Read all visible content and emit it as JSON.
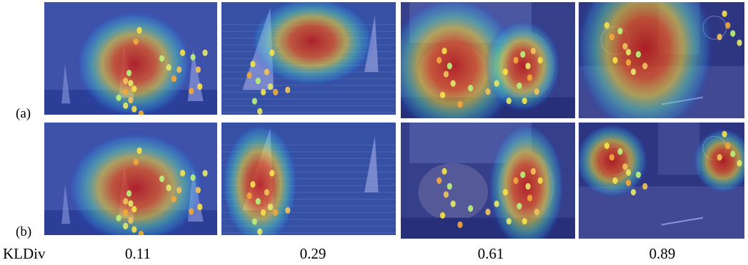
{
  "rows": [
    {
      "label": "(a)"
    },
    {
      "label": "(b)"
    }
  ],
  "metric": {
    "name": "KLDiv",
    "values": [
      "0.11",
      "0.29",
      "0.61",
      "0.89"
    ]
  },
  "panels": [
    {
      "id": "a1",
      "scene": "sailboats",
      "heat": [
        [
          0.52,
          0.55,
          0.34,
          0.48
        ]
      ],
      "fix": [
        [
          0.55,
          0.25
        ],
        [
          0.53,
          0.35
        ],
        [
          0.49,
          0.63
        ],
        [
          0.47,
          0.7
        ],
        [
          0.5,
          0.72
        ],
        [
          0.52,
          0.77
        ],
        [
          0.47,
          0.8
        ],
        [
          0.43,
          0.85
        ],
        [
          0.5,
          0.87
        ],
        [
          0.47,
          0.92
        ],
        [
          0.52,
          0.95
        ],
        [
          0.56,
          0.99
        ],
        [
          0.68,
          0.5
        ],
        [
          0.78,
          0.6
        ],
        [
          0.72,
          0.58
        ],
        [
          0.8,
          0.45
        ],
        [
          0.75,
          0.68
        ],
        [
          0.86,
          0.49
        ],
        [
          0.89,
          0.6
        ],
        [
          0.93,
          0.45
        ],
        [
          0.9,
          0.75
        ],
        [
          0.85,
          0.79
        ]
      ]
    },
    {
      "id": "a2",
      "scene": "sea",
      "heat": [
        [
          0.52,
          0.35,
          0.36,
          0.4
        ]
      ],
      "fix": [
        [
          0.18,
          0.55
        ],
        [
          0.16,
          0.65
        ],
        [
          0.21,
          0.7
        ],
        [
          0.26,
          0.62
        ],
        [
          0.28,
          0.75
        ],
        [
          0.24,
          0.8
        ],
        [
          0.31,
          0.8
        ],
        [
          0.19,
          0.88
        ],
        [
          0.38,
          0.78
        ],
        [
          0.22,
          0.97
        ],
        [
          0.29,
          0.45
        ]
      ]
    },
    {
      "id": "a3",
      "scene": "cats",
      "heat": [
        [
          0.3,
          0.55,
          0.38,
          0.6
        ],
        [
          0.7,
          0.55,
          0.22,
          0.4
        ]
      ],
      "fix": [
        [
          0.25,
          0.42
        ],
        [
          0.22,
          0.5
        ],
        [
          0.28,
          0.55
        ],
        [
          0.26,
          0.62
        ],
        [
          0.3,
          0.7
        ],
        [
          0.24,
          0.8
        ],
        [
          0.34,
          0.88
        ],
        [
          0.4,
          0.74
        ],
        [
          0.5,
          0.77
        ],
        [
          0.55,
          0.7
        ],
        [
          0.6,
          0.6
        ],
        [
          0.66,
          0.5
        ],
        [
          0.7,
          0.45
        ],
        [
          0.76,
          0.42
        ],
        [
          0.73,
          0.55
        ],
        [
          0.8,
          0.5
        ],
        [
          0.74,
          0.65
        ],
        [
          0.68,
          0.72
        ],
        [
          0.78,
          0.77
        ],
        [
          0.62,
          0.85
        ],
        [
          0.71,
          0.85
        ]
      ]
    },
    {
      "id": "a4",
      "scene": "street",
      "heat": [
        [
          0.4,
          0.4,
          0.42,
          0.75
        ]
      ],
      "fix": [
        [
          0.17,
          0.2
        ],
        [
          0.2,
          0.3
        ],
        [
          0.25,
          0.25
        ],
        [
          0.28,
          0.38
        ],
        [
          0.3,
          0.43
        ],
        [
          0.22,
          0.5
        ],
        [
          0.3,
          0.52
        ],
        [
          0.36,
          0.45
        ],
        [
          0.4,
          0.55
        ],
        [
          0.33,
          0.6
        ],
        [
          0.88,
          0.1
        ],
        [
          0.9,
          0.2
        ],
        [
          0.93,
          0.27
        ],
        [
          0.85,
          0.3
        ],
        [
          0.97,
          0.35
        ]
      ]
    },
    {
      "id": "b1",
      "scene": "sailboats",
      "heat": [
        [
          0.53,
          0.58,
          0.4,
          0.5
        ]
      ],
      "fix": [
        [
          0.55,
          0.25
        ],
        [
          0.53,
          0.35
        ],
        [
          0.49,
          0.63
        ],
        [
          0.47,
          0.7
        ],
        [
          0.5,
          0.72
        ],
        [
          0.52,
          0.77
        ],
        [
          0.47,
          0.8
        ],
        [
          0.43,
          0.85
        ],
        [
          0.5,
          0.87
        ],
        [
          0.47,
          0.92
        ],
        [
          0.52,
          0.95
        ],
        [
          0.56,
          0.99
        ],
        [
          0.68,
          0.5
        ],
        [
          0.78,
          0.6
        ],
        [
          0.72,
          0.58
        ],
        [
          0.8,
          0.45
        ],
        [
          0.75,
          0.68
        ],
        [
          0.86,
          0.49
        ],
        [
          0.89,
          0.6
        ],
        [
          0.93,
          0.45
        ],
        [
          0.9,
          0.75
        ],
        [
          0.85,
          0.79
        ]
      ]
    },
    {
      "id": "b2",
      "scene": "sea",
      "heat": [
        [
          0.22,
          0.55,
          0.22,
          0.55
        ]
      ],
      "fix": [
        [
          0.18,
          0.55
        ],
        [
          0.16,
          0.65
        ],
        [
          0.21,
          0.7
        ],
        [
          0.26,
          0.62
        ],
        [
          0.28,
          0.75
        ],
        [
          0.24,
          0.8
        ],
        [
          0.31,
          0.8
        ],
        [
          0.19,
          0.88
        ],
        [
          0.38,
          0.78
        ],
        [
          0.22,
          0.97
        ],
        [
          0.29,
          0.45
        ]
      ]
    },
    {
      "id": "b3",
      "scene": "cats",
      "heat": [
        [
          0.72,
          0.55,
          0.22,
          0.55
        ]
      ],
      "fix": [
        [
          0.25,
          0.42
        ],
        [
          0.22,
          0.5
        ],
        [
          0.28,
          0.55
        ],
        [
          0.26,
          0.62
        ],
        [
          0.3,
          0.7
        ],
        [
          0.24,
          0.8
        ],
        [
          0.34,
          0.88
        ],
        [
          0.4,
          0.74
        ],
        [
          0.5,
          0.77
        ],
        [
          0.55,
          0.7
        ],
        [
          0.6,
          0.6
        ],
        [
          0.66,
          0.5
        ],
        [
          0.7,
          0.45
        ],
        [
          0.76,
          0.42
        ],
        [
          0.73,
          0.55
        ],
        [
          0.8,
          0.5
        ],
        [
          0.74,
          0.65
        ],
        [
          0.68,
          0.72
        ],
        [
          0.78,
          0.77
        ],
        [
          0.62,
          0.85
        ],
        [
          0.71,
          0.85
        ]
      ]
    },
    {
      "id": "b4",
      "scene": "street",
      "heat": [
        [
          0.2,
          0.33,
          0.22,
          0.32
        ],
        [
          0.87,
          0.33,
          0.18,
          0.28
        ]
      ],
      "fix": [
        [
          0.17,
          0.2
        ],
        [
          0.2,
          0.3
        ],
        [
          0.25,
          0.25
        ],
        [
          0.28,
          0.38
        ],
        [
          0.3,
          0.43
        ],
        [
          0.22,
          0.5
        ],
        [
          0.3,
          0.52
        ],
        [
          0.36,
          0.45
        ],
        [
          0.4,
          0.55
        ],
        [
          0.33,
          0.6
        ],
        [
          0.88,
          0.1
        ],
        [
          0.9,
          0.2
        ],
        [
          0.93,
          0.27
        ],
        [
          0.85,
          0.3
        ],
        [
          0.97,
          0.35
        ]
      ]
    }
  ]
}
